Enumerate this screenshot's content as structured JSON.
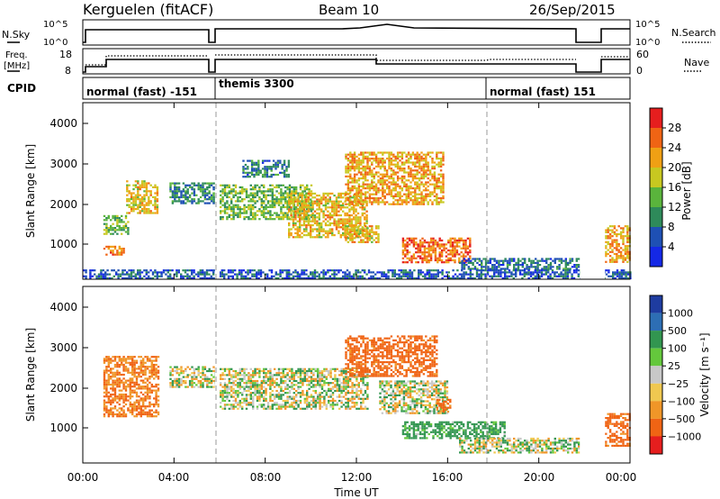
{
  "header": {
    "radar": "Kerguelen (fitACF)",
    "beam": "Beam 10",
    "date": "26/Sep/2015"
  },
  "nsky_panel": {
    "left_label": "N.Sky",
    "left_ticks": [
      "10^5",
      "10^0"
    ],
    "right_ticks": [
      "10^5",
      "10^0"
    ],
    "right_label": "N.Search"
  },
  "freq_panel": {
    "left_label_1": "Freq.",
    "left_label_2": "[MHz]",
    "left_ticks": [
      "18",
      "8"
    ],
    "right_ticks": [
      "60",
      "0"
    ],
    "right_label": "Nave"
  },
  "cpid": {
    "label": "CPID",
    "segments": [
      {
        "name": "normal (fast) -151",
        "start_hour": 0.0
      },
      {
        "name": "themis 3300",
        "start_hour": 6.0
      },
      {
        "name": "normal (fast) 151",
        "start_hour": 18.0
      }
    ]
  },
  "chart_data": [
    {
      "type": "heatmap",
      "quantity": "Power",
      "ylabel": "Slant Range [km]",
      "xlabel": "",
      "x_range_hours": [
        0,
        24
      ],
      "ylim": [
        180,
        4500
      ],
      "y_ticks": [
        "1000",
        "2000",
        "3000",
        "4000"
      ],
      "colorbar": {
        "label": "Power [dB]",
        "ticks": [
          "4",
          "8",
          "12",
          "16",
          "20",
          "24",
          "28"
        ],
        "range": [
          0,
          32
        ],
        "colors": [
          "#1428e6",
          "#1e50b4",
          "#2e8a5a",
          "#5ab43c",
          "#c8c820",
          "#f0a014",
          "#f06414",
          "#e61e1e"
        ]
      },
      "mode_boundaries_hours": [
        6,
        18
      ],
      "data_gaps_hours": [
        [
          5.8,
          6.0
        ],
        [
          21.8,
          22.9
        ]
      ],
      "echo_regions": [
        {
          "t0": 0.9,
          "t1": 1.8,
          "r0": 780,
          "r1": 1000,
          "power": 24
        },
        {
          "t0": 0.9,
          "t1": 2.0,
          "r0": 1300,
          "r1": 1750,
          "power": 14
        },
        {
          "t0": 1.9,
          "t1": 3.3,
          "r0": 1800,
          "r1": 2600,
          "power": 20
        },
        {
          "t0": 3.8,
          "t1": 5.8,
          "r0": 2050,
          "r1": 2550,
          "power": 10
        },
        {
          "t0": 6.0,
          "t1": 10.0,
          "r0": 1650,
          "r1": 2500,
          "power": 14
        },
        {
          "t0": 7.0,
          "t1": 9.0,
          "r0": 2700,
          "r1": 3100,
          "power": 8
        },
        {
          "t0": 9.0,
          "t1": 12.5,
          "r0": 1200,
          "r1": 2300,
          "power": 20
        },
        {
          "t0": 11.5,
          "t1": 15.8,
          "r0": 2000,
          "r1": 3300,
          "power": 22
        },
        {
          "t0": 11.5,
          "t1": 13.0,
          "r0": 1100,
          "r1": 1500,
          "power": 20
        },
        {
          "t0": 14.0,
          "t1": 17.0,
          "r0": 600,
          "r1": 1200,
          "power": 26
        },
        {
          "t0": 16.5,
          "t1": 21.8,
          "r0": 450,
          "r1": 700,
          "power": 8
        },
        {
          "t0": 22.9,
          "t1": 24.0,
          "r0": 600,
          "r1": 1500,
          "power": 22
        },
        {
          "t0": 0.0,
          "t1": 24.0,
          "r0": 180,
          "r1": 420,
          "power": 6
        }
      ]
    },
    {
      "type": "heatmap",
      "quantity": "Velocity",
      "ylabel": "Slant Range [km]",
      "xlabel": "Time UT",
      "x_range_hours": [
        0,
        24
      ],
      "x_ticks": [
        "00:00",
        "04:00",
        "08:00",
        "12:00",
        "16:00",
        "20:00",
        "00:00"
      ],
      "ylim": [
        180,
        4500
      ],
      "y_ticks": [
        "1000",
        "2000",
        "3000",
        "4000"
      ],
      "colorbar": {
        "label": "Velocity [m s⁻¹]",
        "ticks": [
          "1000",
          "500",
          "100",
          "25",
          "−25",
          "−100",
          "−500",
          "−1000"
        ],
        "colors": [
          "#1e3ca0",
          "#2d6eb4",
          "#329650",
          "#64c83c",
          "#c8c8c8",
          "#f0c850",
          "#f09628",
          "#f06414",
          "#e61e1e"
        ]
      },
      "mode_boundaries_hours": [
        6,
        18
      ],
      "data_gaps_hours": [
        [
          5.8,
          6.0
        ],
        [
          21.8,
          22.9
        ]
      ],
      "echo_regions": [
        {
          "t0": 0.9,
          "t1": 3.3,
          "r0": 1300,
          "r1": 2800,
          "velocity": -300
        },
        {
          "t0": 3.8,
          "t1": 5.8,
          "r0": 2050,
          "r1": 2550,
          "velocity": 0
        },
        {
          "t0": 6.0,
          "t1": 12.5,
          "r0": 1500,
          "r1": 2500,
          "velocity": 0
        },
        {
          "t0": 11.5,
          "t1": 15.5,
          "r0": 2300,
          "r1": 3300,
          "velocity": -400
        },
        {
          "t0": 13.0,
          "t1": 16.0,
          "r0": 1400,
          "r1": 2200,
          "velocity": 0
        },
        {
          "t0": 15.5,
          "t1": 16.1,
          "r0": 1450,
          "r1": 1750,
          "velocity": -400
        },
        {
          "t0": 14.0,
          "t1": 18.5,
          "r0": 800,
          "r1": 1200,
          "velocity": 150
        },
        {
          "t0": 16.5,
          "t1": 21.8,
          "r0": 450,
          "r1": 800,
          "velocity": 20
        },
        {
          "t0": 22.9,
          "t1": 24.0,
          "r0": 600,
          "r1": 1400,
          "velocity": -400
        }
      ]
    }
  ]
}
